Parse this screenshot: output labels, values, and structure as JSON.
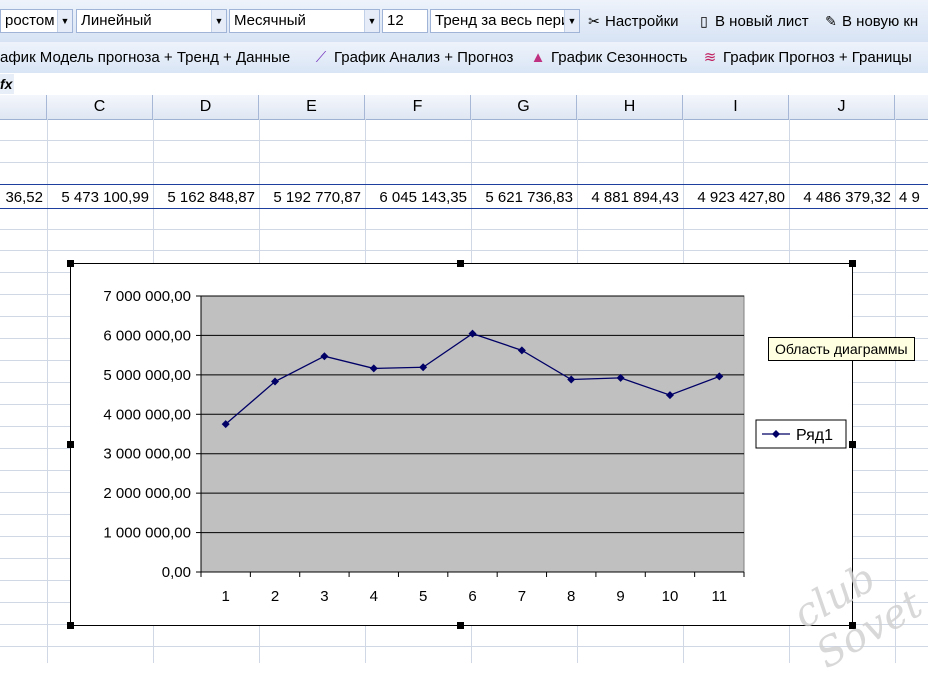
{
  "toolbar1": {
    "combo1": "ростом",
    "combo2": "Линейный",
    "combo3": "Месячный",
    "combo4": "12",
    "combo5": "Тренд за весь пери",
    "settings_label": "Настройки",
    "new_sheet_label": "В новый лист",
    "new_book_label": "В новую кн"
  },
  "toolbar2": {
    "btn1": "афик Модель прогноза + Тренд + Данные",
    "btn2": "График Анализ + Прогноз",
    "btn3": "График Сезонность",
    "btn4": "График Прогноз + Границы"
  },
  "formula_bar": {
    "fx": "fx"
  },
  "columns": [
    "C",
    "D",
    "E",
    "F",
    "G",
    "H",
    "I",
    "J"
  ],
  "row_values": [
    "36,52",
    "5 473 100,99",
    "5 162 848,87",
    "5 192 770,87",
    "6 045 143,35",
    "5 621 736,83",
    "4 881 894,43",
    "4 923 427,80",
    "4 486 379,32",
    "4 9"
  ],
  "tooltip": "Область диаграммы",
  "watermark": "club Sovet",
  "chart_data": {
    "type": "line",
    "categories": [
      "1",
      "2",
      "3",
      "4",
      "5",
      "6",
      "7",
      "8",
      "9",
      "10",
      "11"
    ],
    "series": [
      {
        "name": "Ряд1",
        "color": "#000066",
        "values": [
          3750000,
          4830000,
          5473100.99,
          5162848.87,
          5192770.87,
          6045143.35,
          5621736.83,
          4881894.43,
          4923427.8,
          4486379.32,
          4960000
        ]
      }
    ],
    "y_ticks": [
      "0,00",
      "1 000 000,00",
      "2 000 000,00",
      "3 000 000,00",
      "4 000 000,00",
      "5 000 000,00",
      "6 000 000,00",
      "7 000 000,00"
    ],
    "ylim": [
      0,
      7000000
    ],
    "plot_bg": "#c0c0c0",
    "grid": true,
    "legend_position": "right"
  }
}
